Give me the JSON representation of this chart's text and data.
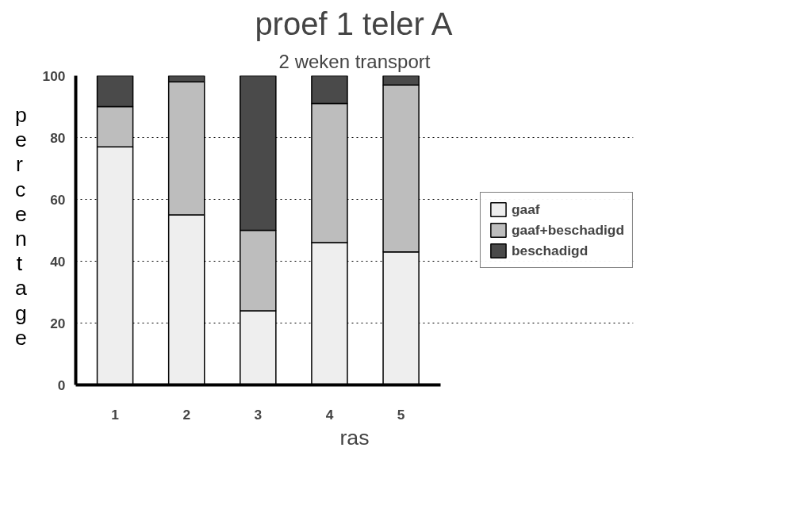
{
  "chart_data": {
    "type": "bar",
    "stacked": true,
    "title": "proef 1 teler A",
    "subtitle": "2 weken transport",
    "xlabel": "ras",
    "ylabel": "percentage",
    "categories": [
      "1",
      "2",
      "3",
      "4",
      "5"
    ],
    "series": [
      {
        "name": "gaaf",
        "color": "#eeeeee",
        "values": [
          77,
          55,
          24,
          46,
          43
        ]
      },
      {
        "name": "gaaf+beschadigd",
        "color": "#bdbdbd",
        "values": [
          13,
          43,
          26,
          45,
          54
        ]
      },
      {
        "name": "beschadigd",
        "color": "#4a4a4a",
        "values": [
          10,
          2,
          50,
          9,
          3
        ]
      }
    ],
    "ylim": [
      0,
      100
    ],
    "yticks": [
      0,
      20,
      40,
      60,
      80,
      100
    ],
    "grid": "y",
    "legend": "right"
  }
}
